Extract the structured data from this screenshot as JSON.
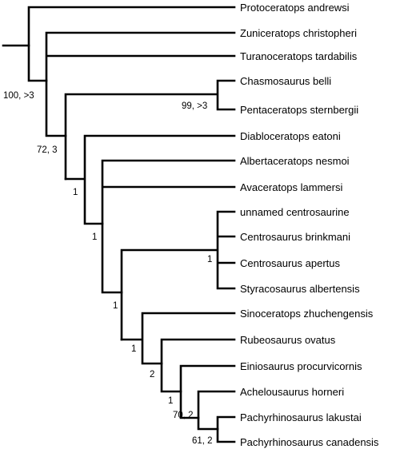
{
  "taxa": [
    "Protoceratops andrewsi",
    "Zuniceratops christopheri",
    "Turanoceratops tardabilis",
    "Chasmosaurus belli",
    "Pentaceratops sternbergii",
    "Diabloceratops eatoni",
    "Albertaceratops nesmoi",
    "Avaceratops lammersi",
    "unnamed centrosaurine",
    "Centrosaurus brinkmani",
    "Centrosaurus apertus",
    "Styracosaurus albertensis",
    "Sinoceratops zhuchengensis",
    "Rubeosaurus ovatus",
    "Einiosaurus procurvicornis",
    "Achelousaurus horneri",
    "Pachyrhinosaurus lakustai",
    "Pachyrhinosaurus canadensis"
  ],
  "support": {
    "neoceratopsia": "100, >3",
    "chasmosaurinae": "99, >3",
    "ceratopsidae": "72, 3",
    "centro_a": "1",
    "centro_b": "1",
    "centro_c": "1",
    "centrosaurus_group": "1",
    "centro_d": "1",
    "centro_e": "2",
    "centro_f": "1",
    "pachyrhinosaurini": "70, 2",
    "pachyrhinosaurus": "61, 2"
  }
}
